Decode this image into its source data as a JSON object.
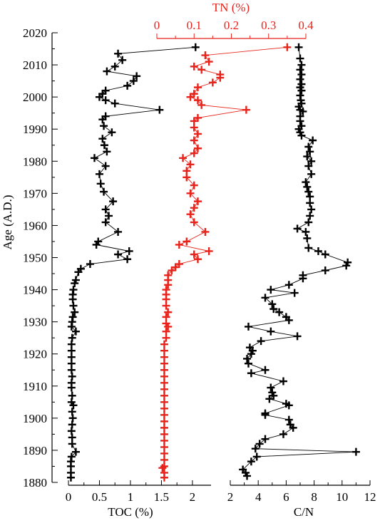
{
  "chart_data": [
    {
      "type": "line",
      "series_name": "TOC",
      "xlabel": "TOC (%)",
      "ylabel": "Age (A.D.)",
      "xlim": [
        0,
        2.3
      ],
      "ylim": [
        1880,
        2020
      ],
      "xticks": [
        "0",
        "0.5",
        "1",
        "1.5",
        "2"
      ],
      "yticks": [
        "1880",
        "1890",
        "1900",
        "1910",
        "1920",
        "1930",
        "1940",
        "1950",
        "1960",
        "1970",
        "1980",
        "1990",
        "2000",
        "2010",
        "2020"
      ],
      "color": "#000000",
      "points": [
        [
          2.05,
          2015.5
        ],
        [
          0.8,
          2013.5
        ],
        [
          0.87,
          2011.5
        ],
        [
          0.75,
          2009.5
        ],
        [
          0.62,
          2008
        ],
        [
          1.1,
          2006.5
        ],
        [
          1.05,
          2005
        ],
        [
          0.95,
          2003.5
        ],
        [
          0.6,
          2002
        ],
        [
          0.55,
          2001
        ],
        [
          0.5,
          2000
        ],
        [
          0.6,
          1999
        ],
        [
          0.75,
          1998
        ],
        [
          1.47,
          1996
        ],
        [
          0.6,
          1994
        ],
        [
          0.55,
          1993
        ],
        [
          0.57,
          1991
        ],
        [
          0.7,
          1989
        ],
        [
          0.55,
          1987
        ],
        [
          0.58,
          1985
        ],
        [
          0.62,
          1983
        ],
        [
          0.42,
          1981
        ],
        [
          0.6,
          1978.5
        ],
        [
          0.5,
          1976
        ],
        [
          0.52,
          1973
        ],
        [
          0.57,
          1970.5
        ],
        [
          0.72,
          1967.5
        ],
        [
          0.6,
          1965
        ],
        [
          0.65,
          1963
        ],
        [
          0.6,
          1961
        ],
        [
          0.8,
          1958
        ],
        [
          0.48,
          1955
        ],
        [
          0.45,
          1954
        ],
        [
          0.98,
          1952
        ],
        [
          0.8,
          1951
        ],
        [
          0.95,
          1949.5
        ],
        [
          0.35,
          1948
        ],
        [
          0.2,
          1946.5
        ],
        [
          0.16,
          1945.5
        ],
        [
          0.12,
          1943
        ],
        [
          0.1,
          1942
        ],
        [
          0.08,
          1940
        ],
        [
          0.07,
          1938.5
        ],
        [
          0.07,
          1937
        ],
        [
          0.08,
          1935
        ],
        [
          0.1,
          1933
        ],
        [
          0.07,
          1931.5
        ],
        [
          0.06,
          1930
        ],
        [
          0.05,
          1928.5
        ],
        [
          0.12,
          1927
        ],
        [
          0.06,
          1925
        ],
        [
          0.05,
          1923
        ],
        [
          0.05,
          1921
        ],
        [
          0.05,
          1919
        ],
        [
          0.05,
          1917
        ],
        [
          0.05,
          1915
        ],
        [
          0.06,
          1913
        ],
        [
          0.05,
          1911
        ],
        [
          0.05,
          1909.5
        ],
        [
          0.06,
          1907
        ],
        [
          0.05,
          1905
        ],
        [
          0.08,
          1904
        ],
        [
          0.06,
          1902
        ],
        [
          0.07,
          1900
        ],
        [
          0.06,
          1898
        ],
        [
          0.05,
          1896
        ],
        [
          0.06,
          1894
        ],
        [
          0.06,
          1892
        ],
        [
          0.12,
          1889.5
        ],
        [
          0.05,
          1888
        ],
        [
          0.04,
          1886.5
        ],
        [
          0.04,
          1885
        ],
        [
          0.04,
          1883
        ],
        [
          0.04,
          1881.5
        ]
      ]
    },
    {
      "type": "line",
      "series_name": "TN",
      "xlabel": "TN (%)",
      "xlim": [
        0,
        0.4
      ],
      "xticks": [
        "0",
        "0.1",
        "0.2",
        "0.3",
        "0.4"
      ],
      "color": "#e8231b",
      "points": [
        [
          0.35,
          2015.5
        ],
        [
          0.13,
          2013
        ],
        [
          0.14,
          2011
        ],
        [
          0.1,
          2009.5
        ],
        [
          0.12,
          2008.5
        ],
        [
          0.17,
          2007
        ],
        [
          0.17,
          2006
        ],
        [
          0.15,
          2004.5
        ],
        [
          0.11,
          2003
        ],
        [
          0.1,
          2001
        ],
        [
          0.09,
          2000
        ],
        [
          0.11,
          1999
        ],
        [
          0.12,
          1997.5
        ],
        [
          0.24,
          1996
        ],
        [
          0.11,
          1993.5
        ],
        [
          0.1,
          1992.5
        ],
        [
          0.1,
          1990.5
        ],
        [
          0.11,
          1988.5
        ],
        [
          0.1,
          1986.5
        ],
        [
          0.11,
          1984
        ],
        [
          0.1,
          1982.5
        ],
        [
          0.07,
          1981
        ],
        [
          0.09,
          1979
        ],
        [
          0.08,
          1977
        ],
        [
          0.08,
          1975
        ],
        [
          0.1,
          1972.5
        ],
        [
          0.09,
          1970
        ],
        [
          0.11,
          1967.5
        ],
        [
          0.1,
          1965.5
        ],
        [
          0.09,
          1963.5
        ],
        [
          0.1,
          1961
        ],
        [
          0.13,
          1958
        ],
        [
          0.08,
          1955
        ],
        [
          0.06,
          1954
        ],
        [
          0.14,
          1952
        ],
        [
          0.1,
          1951
        ],
        [
          0.11,
          1949.5
        ],
        [
          0.06,
          1948
        ],
        [
          0.05,
          1947
        ],
        [
          0.04,
          1946
        ],
        [
          0.03,
          1944.5
        ],
        [
          0.03,
          1943
        ],
        [
          0.03,
          1941.5
        ],
        [
          0.025,
          1940
        ],
        [
          0.025,
          1938.5
        ],
        [
          0.025,
          1937
        ],
        [
          0.025,
          1935
        ],
        [
          0.03,
          1933
        ],
        [
          0.025,
          1931.5
        ],
        [
          0.025,
          1929.5
        ],
        [
          0.03,
          1928.5
        ],
        [
          0.025,
          1927
        ],
        [
          0.025,
          1925
        ],
        [
          0.02,
          1923
        ],
        [
          0.02,
          1921
        ],
        [
          0.02,
          1919
        ],
        [
          0.02,
          1917
        ],
        [
          0.02,
          1915
        ],
        [
          0.02,
          1913
        ],
        [
          0.02,
          1911
        ],
        [
          0.02,
          1909
        ],
        [
          0.02,
          1907
        ],
        [
          0.02,
          1905
        ],
        [
          0.02,
          1903
        ],
        [
          0.02,
          1901
        ],
        [
          0.02,
          1899
        ],
        [
          0.02,
          1897
        ],
        [
          0.02,
          1895
        ],
        [
          0.02,
          1893
        ],
        [
          0.02,
          1891
        ],
        [
          0.02,
          1889
        ],
        [
          0.02,
          1887
        ],
        [
          0.02,
          1885
        ],
        [
          0.015,
          1884.5
        ],
        [
          0.02,
          1883
        ],
        [
          0.02,
          1881.5
        ]
      ]
    },
    {
      "type": "line",
      "series_name": "C/N",
      "xlabel": "C/N",
      "xlim": [
        2,
        12
      ],
      "xticks": [
        "2",
        "3",
        "4",
        "5",
        "6",
        "7",
        "8",
        "9",
        "10",
        "11",
        "12"
      ],
      "color": "#000000",
      "points": [
        [
          6.9,
          2015.5
        ],
        [
          7.0,
          2012
        ],
        [
          7.1,
          2010
        ],
        [
          7.0,
          2008.5
        ],
        [
          7.1,
          2007
        ],
        [
          7.0,
          2005.5
        ],
        [
          7.1,
          2004
        ],
        [
          7.0,
          2003
        ],
        [
          7.1,
          2002
        ],
        [
          7.0,
          2000.5
        ],
        [
          7.05,
          1999
        ],
        [
          7.1,
          1998
        ],
        [
          6.9,
          1997
        ],
        [
          7.0,
          1996
        ],
        [
          7.2,
          1995.5
        ],
        [
          7.0,
          1994
        ],
        [
          7.0,
          1992.5
        ],
        [
          7.1,
          1991
        ],
        [
          6.9,
          1990
        ],
        [
          7.0,
          1989
        ],
        [
          7.1,
          1988
        ],
        [
          7.9,
          1986.5
        ],
        [
          7.6,
          1984.5
        ],
        [
          7.7,
          1983
        ],
        [
          7.5,
          1981.5
        ],
        [
          7.8,
          1980
        ],
        [
          7.6,
          1978.5
        ],
        [
          7.8,
          1976
        ],
        [
          7.4,
          1973.5
        ],
        [
          7.5,
          1972
        ],
        [
          7.6,
          1970.5
        ],
        [
          7.7,
          1969
        ],
        [
          7.7,
          1967
        ],
        [
          7.8,
          1965
        ],
        [
          7.7,
          1963
        ],
        [
          7.6,
          1961
        ],
        [
          6.8,
          1959
        ],
        [
          7.4,
          1958
        ],
        [
          7.5,
          1956
        ],
        [
          7.6,
          1953
        ],
        [
          8.3,
          1952
        ],
        [
          8.8,
          1951
        ],
        [
          10.4,
          1948.5
        ],
        [
          10.3,
          1947.5
        ],
        [
          8.8,
          1946
        ],
        [
          7.2,
          1944.5
        ],
        [
          7.2,
          1943.5
        ],
        [
          6.2,
          1941.5
        ],
        [
          4.9,
          1940
        ],
        [
          6.6,
          1939
        ],
        [
          4.5,
          1937.5
        ],
        [
          5.0,
          1935.5
        ],
        [
          5.1,
          1934
        ],
        [
          5.5,
          1933
        ],
        [
          6.0,
          1931.5
        ],
        [
          6.2,
          1930.5
        ],
        [
          3.3,
          1928.5
        ],
        [
          4.9,
          1927
        ],
        [
          6.8,
          1925.5
        ],
        [
          4.2,
          1924
        ],
        [
          3.4,
          1922
        ],
        [
          3.6,
          1921
        ],
        [
          3.5,
          1920
        ],
        [
          3.2,
          1918.5
        ],
        [
          3.3,
          1917
        ],
        [
          4.5,
          1915
        ],
        [
          3.5,
          1914
        ],
        [
          5.8,
          1911.5
        ],
        [
          4.9,
          1909.5
        ],
        [
          5.0,
          1908
        ],
        [
          5.1,
          1907
        ],
        [
          4.8,
          1906
        ],
        [
          6.0,
          1904.5
        ],
        [
          6.2,
          1904
        ],
        [
          4.5,
          1901.5
        ],
        [
          4.5,
          1901
        ],
        [
          6.2,
          1899.5
        ],
        [
          6.3,
          1898
        ],
        [
          6.5,
          1897
        ],
        [
          5.8,
          1895
        ],
        [
          4.5,
          1893.5
        ],
        [
          4.1,
          1892
        ],
        [
          3.8,
          1890.5
        ],
        [
          11.0,
          1889.5
        ],
        [
          3.9,
          1888
        ],
        [
          3.5,
          1886.5
        ],
        [
          2.9,
          1884
        ],
        [
          3.1,
          1883
        ],
        [
          3.2,
          1882
        ]
      ]
    }
  ]
}
